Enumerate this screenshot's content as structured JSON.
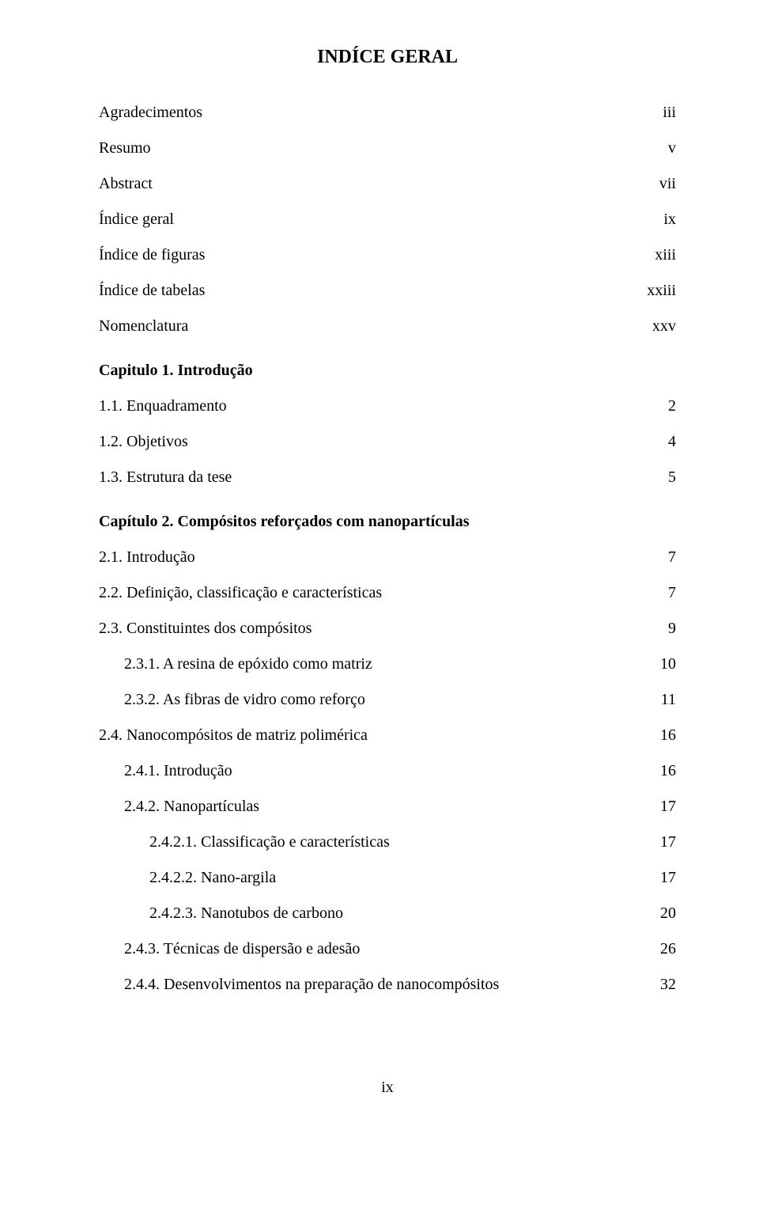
{
  "title": "INDÍCE GERAL",
  "front_matter": [
    {
      "label": "Agradecimentos",
      "page": "iii"
    },
    {
      "label": "Resumo",
      "page": "v"
    },
    {
      "label": "Abstract",
      "page": "vii"
    },
    {
      "label": "Índice geral",
      "page": "ix"
    },
    {
      "label": "Índice de figuras",
      "page": "xiii"
    },
    {
      "label": "Índice de tabelas",
      "page": "xxiii"
    },
    {
      "label": "Nomenclatura",
      "page": "xxv"
    }
  ],
  "chapter1": {
    "heading": "Capitulo 1. Introdução",
    "entries": [
      {
        "label": "1.1. Enquadramento",
        "page": "2"
      },
      {
        "label": "1.2. Objetivos",
        "page": "4"
      },
      {
        "label": "1.3. Estrutura da tese",
        "page": "5"
      }
    ]
  },
  "chapter2": {
    "heading": "Capítulo 2. Compósitos reforçados com nanopartículas",
    "entries": [
      {
        "label": "2.1. Introdução",
        "page": "7",
        "indent": 0
      },
      {
        "label": "2.2. Definição, classificação e características",
        "page": "7",
        "indent": 0
      },
      {
        "label": "2.3. Constituintes dos compósitos",
        "page": "9",
        "indent": 0
      },
      {
        "label": "2.3.1. A resina de epóxido como matriz",
        "page": "10",
        "indent": 1
      },
      {
        "label": "2.3.2. As fibras de vidro como reforço",
        "page": "11",
        "indent": 1
      },
      {
        "label": "2.4. Nanocompósitos de matriz polimérica",
        "page": "16",
        "indent": 0
      },
      {
        "label": "2.4.1. Introdução",
        "page": "16",
        "indent": 1
      },
      {
        "label": "2.4.2. Nanopartículas",
        "page": "17",
        "indent": 1
      },
      {
        "label": "2.4.2.1. Classificação e características",
        "page": "17",
        "indent": 2
      },
      {
        "label": "2.4.2.2. Nano-argila",
        "page": "17",
        "indent": 2
      },
      {
        "label": "2.4.2.3. Nanotubos de carbono",
        "page": "20",
        "indent": 2
      },
      {
        "label": "2.4.3. Técnicas de dispersão e adesão",
        "page": "26",
        "indent": 1
      },
      {
        "label": "2.4.4. Desenvolvimentos na preparação de nanocompósitos",
        "page": "32",
        "indent": 1
      }
    ]
  },
  "footer_page": "ix"
}
